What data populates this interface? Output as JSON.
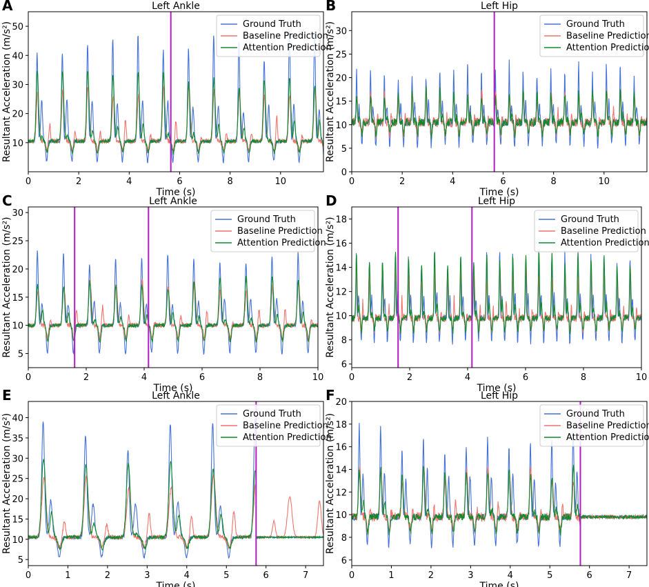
{
  "colors": {
    "ground_truth": "#4472d8",
    "baseline": "#f0746c",
    "attention": "#0f8a2a",
    "marker": "#b41bc4",
    "axes": "#000000"
  },
  "legend_labels": [
    "Ground Truth",
    "Baseline Prediction",
    "Attention Prediction"
  ],
  "chart_data": [
    {
      "panel": "A",
      "type": "line",
      "title": "Left Ankle",
      "xlabel": "Time (s)",
      "ylabel": "Resultant Acceleration (m/s²)",
      "xlim": [
        0,
        11.7
      ],
      "ylim": [
        0,
        55
      ],
      "xticks": [
        0,
        2,
        4,
        6,
        8,
        10
      ],
      "yticks": [
        10,
        20,
        30,
        40,
        50
      ],
      "markers": [
        5.65
      ],
      "legend": "top-right",
      "signal": {
        "period": 1.0,
        "baseline": 10.5,
        "gt_peak": 45,
        "gt_peak2": 25,
        "base_peak": 30,
        "att_peak": 33,
        "noise": 1.2,
        "gt_dip": 7,
        "seed": 3
      },
      "series": [
        {
          "name": "Ground Truth",
          "values_summary": "periodic peaks ~45-53 m/s² every ~1 s, baseline ~10"
        },
        {
          "name": "Baseline Prediction",
          "values_summary": "peaks ~25-35"
        },
        {
          "name": "Attention Prediction",
          "values_summary": "peaks ~28-40"
        }
      ]
    },
    {
      "panel": "B",
      "type": "line",
      "title": "Left Hip",
      "xlabel": "Time (s)",
      "ylabel": "Resultant Acceleration (m/s²)",
      "xlim": [
        0,
        11.7
      ],
      "ylim": [
        0,
        34
      ],
      "xticks": [
        0,
        2,
        4,
        6,
        8,
        10
      ],
      "yticks": [
        0,
        5,
        10,
        15,
        20,
        25,
        30
      ],
      "markers": [
        5.65
      ],
      "legend": "top-right",
      "signal": {
        "period": 0.55,
        "baseline": 10.5,
        "gt_peak": 22,
        "gt_peak2": 15,
        "base_peak": 17,
        "att_peak": 17,
        "noise": 1.6,
        "gt_dip": 5,
        "seed": 7
      },
      "series": [
        {
          "name": "Ground Truth",
          "values_summary": "peaks ~20-33"
        },
        {
          "name": "Baseline Prediction",
          "values_summary": "peaks ~15-20"
        },
        {
          "name": "Attention Prediction",
          "values_summary": "peaks ~15-19"
        }
      ]
    },
    {
      "panel": "C",
      "type": "line",
      "title": "Left Ankle",
      "xlabel": "Time (s)",
      "ylabel": "Resultant Acceleration (m/s²)",
      "xlim": [
        0,
        10
      ],
      "ylim": [
        2.5,
        31
      ],
      "xticks": [
        0,
        2,
        4,
        6,
        8,
        10
      ],
      "yticks": [
        5,
        10,
        15,
        20,
        25,
        30
      ],
      "markers": [
        1.6,
        4.15
      ],
      "legend": "top-right",
      "signal": {
        "period": 0.9,
        "baseline": 10,
        "gt_peak": 22,
        "gt_peak2": 15,
        "base_peak": 18,
        "att_peak": 18,
        "noise": 0.6,
        "gt_dip": 5,
        "seed": 11
      },
      "series": [
        {
          "name": "Ground Truth",
          "values_summary": "peaks ~20-28"
        },
        {
          "name": "Baseline Prediction",
          "values_summary": "peaks ~15-24"
        },
        {
          "name": "Attention Prediction",
          "values_summary": "peaks ~15-22"
        }
      ]
    },
    {
      "panel": "D",
      "type": "line",
      "title": "Left Hip",
      "xlabel": "Time (s)",
      "ylabel": "Resultant Acceleration (m/s²)",
      "xlim": [
        0,
        10
      ],
      "ylim": [
        5.7,
        19
      ],
      "xticks": [
        0,
        2,
        4,
        6,
        8,
        10
      ],
      "yticks": [
        6,
        8,
        10,
        12,
        14,
        16,
        18
      ],
      "markers": [
        1.6,
        4.15
      ],
      "legend": "top-right",
      "signal": {
        "period": 0.45,
        "baseline": 9.8,
        "gt_peak": 15,
        "gt_peak2": 12,
        "base_peak": 14,
        "att_peak": 15,
        "noise": 0.5,
        "gt_dip": 2,
        "seed": 19
      },
      "series": [
        {
          "name": "Ground Truth",
          "values_summary": "peaks ~13-17"
        },
        {
          "name": "Baseline Prediction",
          "values_summary": "peaks ~12-17"
        },
        {
          "name": "Attention Prediction",
          "values_summary": "peaks ~12-18.5"
        }
      ]
    },
    {
      "panel": "E",
      "type": "line",
      "title": "Left Ankle",
      "xlabel": "Time (s)",
      "ylabel": "Resultant Acceleration (m/s²)",
      "xlim": [
        0,
        7.45
      ],
      "ylim": [
        3.5,
        44
      ],
      "xticks": [
        0,
        1,
        2,
        3,
        4,
        5,
        6,
        7
      ],
      "yticks": [
        5,
        10,
        15,
        20,
        25,
        30,
        35,
        40
      ],
      "markers": [
        5.75
      ],
      "legend": "top-right",
      "signal": {
        "period": 1.07,
        "baseline": 10.5,
        "gt_peak": 36,
        "gt_peak2": 20,
        "base_peak": 26,
        "att_peak": 29,
        "noise": 0.8,
        "gt_dip": 5,
        "seed": 23,
        "stop": 5.75
      },
      "series": [
        {
          "name": "Ground Truth",
          "values_summary": "peaks ~32-42 until ~5.7 s then flat ~10"
        },
        {
          "name": "Baseline Prediction",
          "values_summary": "peaks ~20-34; spurious bumps ~20 after 6 s"
        },
        {
          "name": "Attention Prediction",
          "values_summary": "peaks ~22-35; flat ~10 after stop"
        }
      ]
    },
    {
      "panel": "F",
      "type": "line",
      "title": "Left Hip",
      "xlabel": "Time (s)",
      "ylabel": "Resultant Acceleration (m/s²)",
      "xlim": [
        0,
        7.45
      ],
      "ylim": [
        5.5,
        20
      ],
      "xticks": [
        0,
        1,
        2,
        3,
        4,
        5,
        6,
        7
      ],
      "yticks": [
        6,
        8,
        10,
        12,
        14,
        16,
        18,
        20
      ],
      "markers": [
        5.77
      ],
      "legend": "top-right",
      "signal": {
        "period": 0.54,
        "baseline": 9.8,
        "gt_peak": 17,
        "gt_peak2": 14,
        "base_peak": 14,
        "att_peak": 14,
        "noise": 0.6,
        "gt_dip": 2.5,
        "seed": 29,
        "stop": 5.77
      },
      "series": [
        {
          "name": "Ground Truth",
          "values_summary": "peaks ~15-19.5 until ~5.8 s then ~10"
        },
        {
          "name": "Baseline Prediction",
          "values_summary": "peaks ~12-18.5"
        },
        {
          "name": "Attention Prediction",
          "values_summary": "peaks ~12-17"
        }
      ]
    }
  ]
}
